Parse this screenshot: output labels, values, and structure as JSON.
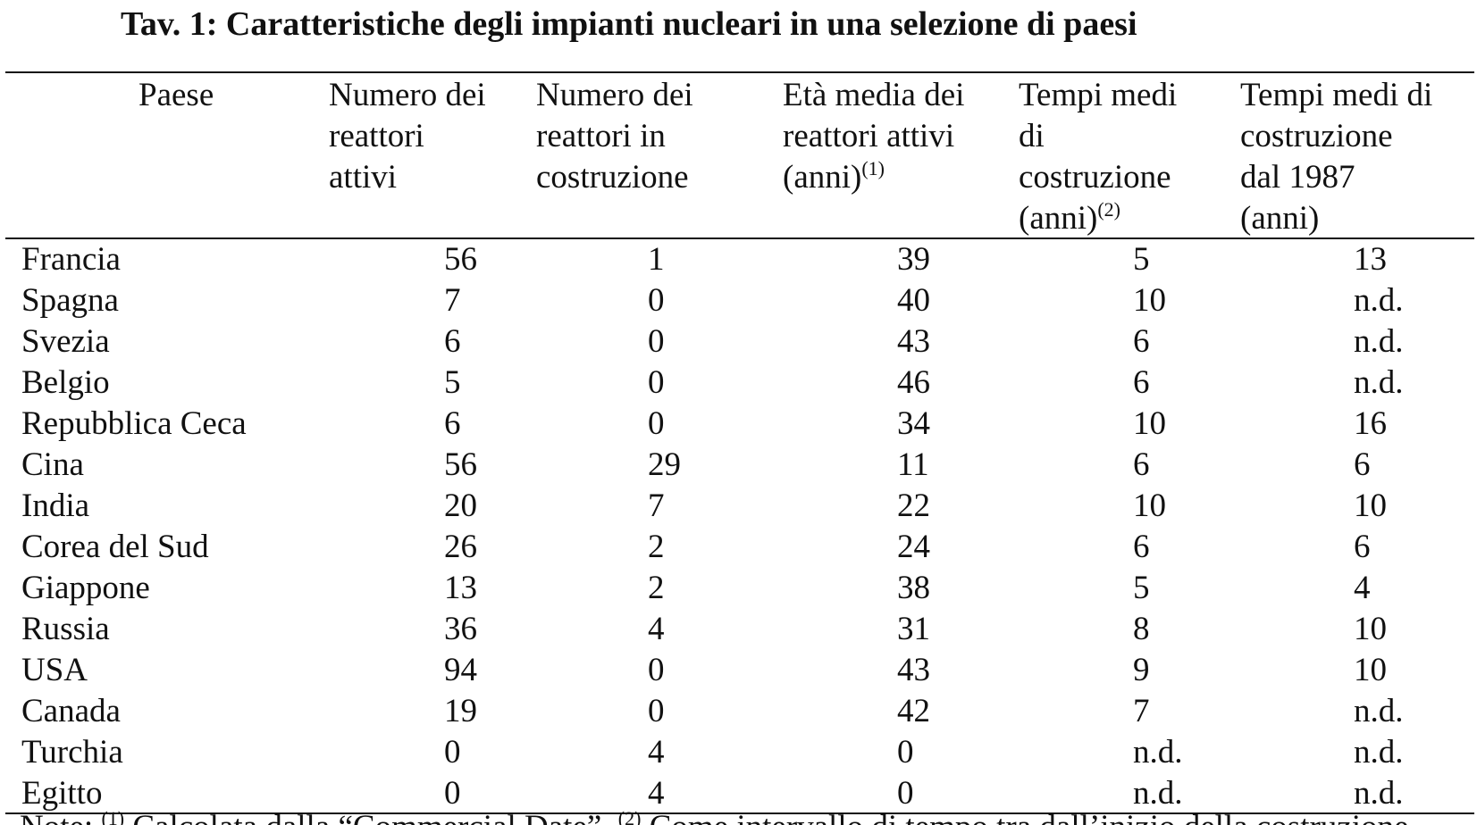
{
  "title": "Tav. 1: Caratteristiche degli impianti nucleari in una selezione di paesi",
  "headers": {
    "country": [
      "Paese"
    ],
    "active_reactors": [
      "Numero dei",
      "reattori",
      "attivi"
    ],
    "under_construction": [
      "Numero dei",
      "reattori in",
      "costruzione"
    ],
    "avg_age": [
      "Età media dei",
      "reattori attivi",
      "(anni)"
    ],
    "avg_age_sup": "(1)",
    "build_time": [
      "Tempi medi",
      "di",
      "costruzione",
      "(anni)"
    ],
    "build_time_sup": "(2)",
    "build_time_1987": [
      "Tempi medi di",
      "costruzione",
      "dal 1987",
      "(anni)"
    ]
  },
  "rows": [
    {
      "country": "Francia",
      "active": "56",
      "construction": "1",
      "age": "39",
      "time": "5",
      "time_1987": "13"
    },
    {
      "country": "Spagna",
      "active": "7",
      "construction": "0",
      "age": "40",
      "time": "10",
      "time_1987": "n.d."
    },
    {
      "country": "Svezia",
      "active": "6",
      "construction": "0",
      "age": "43",
      "time": "6",
      "time_1987": "n.d."
    },
    {
      "country": "Belgio",
      "active": "5",
      "construction": "0",
      "age": "46",
      "time": "6",
      "time_1987": "n.d."
    },
    {
      "country": "Repubblica Ceca",
      "active": "6",
      "construction": "0",
      "age": "34",
      "time": "10",
      "time_1987": "16"
    },
    {
      "country": "Cina",
      "active": "56",
      "construction": "29",
      "age": "11",
      "time": "6",
      "time_1987": "6"
    },
    {
      "country": "India",
      "active": "20",
      "construction": "7",
      "age": "22",
      "time": "10",
      "time_1987": "10"
    },
    {
      "country": "Corea del Sud",
      "active": "26",
      "construction": "2",
      "age": "24",
      "time": "6",
      "time_1987": "6"
    },
    {
      "country": "Giappone",
      "active": "13",
      "construction": "2",
      "age": "38",
      "time": "5",
      "time_1987": "4"
    },
    {
      "country": "Russia",
      "active": "36",
      "construction": "4",
      "age": "31",
      "time": "8",
      "time_1987": "10"
    },
    {
      "country": "USA",
      "active": "94",
      "construction": "0",
      "age": "43",
      "time": "9",
      "time_1987": "10"
    },
    {
      "country": "Canada",
      "active": "19",
      "construction": "0",
      "age": "42",
      "time": "7",
      "time_1987": "n.d."
    },
    {
      "country": "Turchia",
      "active": "0",
      "construction": "4",
      "age": "0",
      "time": "n.d.",
      "time_1987": "n.d."
    },
    {
      "country": "Egitto",
      "active": "0",
      "construction": "4",
      "age": "0",
      "time": "n.d.",
      "time_1987": "n.d."
    }
  ],
  "note": {
    "prefix": "Note: ",
    "sup1": "(1)",
    "text1": " Calcolata dalla “Commercial Date”. ",
    "sup2": "(2)",
    "text2": " Come intervallo di tempo tra dall’inizio della costruzione"
  }
}
